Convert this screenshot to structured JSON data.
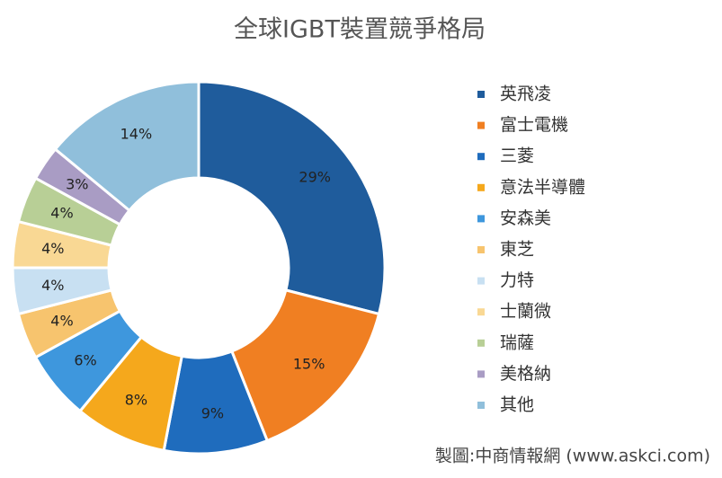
{
  "chart_data": {
    "type": "donut",
    "title": "全球IGBT裝置競爭格局",
    "categories": [
      "英飛凌",
      "富士電機",
      "三菱",
      "意法半導體",
      "安森美",
      "東芝",
      "力特",
      "士蘭微",
      "瑞薩",
      "美格納",
      "其他"
    ],
    "values": [
      29,
      15,
      9,
      8,
      6,
      4,
      4,
      4,
      4,
      3,
      14
    ],
    "value_labels": [
      "29%",
      "15%",
      "9%",
      "8%",
      "6%",
      "4%",
      "4%",
      "4%",
      "4%",
      "3%",
      "14%"
    ],
    "colors": [
      "#1f5c9c",
      "#f07f22",
      "#1f6cbd",
      "#f5a81c",
      "#3e97dd",
      "#f7c46e",
      "#c8e0f2",
      "#f9d894",
      "#b8cf96",
      "#a99cc4",
      "#90bfdb"
    ],
    "source": "製圖:中商情報網 (www.askci.com)"
  }
}
